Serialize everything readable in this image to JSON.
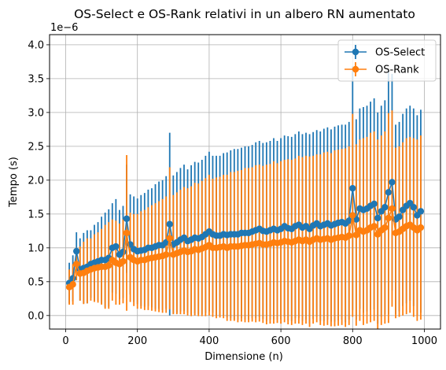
{
  "chart_data": {
    "type": "line",
    "title": "OS-Select e OS-Rank relativi in un albero RN aumentato",
    "xlabel": "Dimensione (n)",
    "ylabel": "Tempo (s)",
    "y_scale_label": "1e−6",
    "xlim": [
      -45,
      1045
    ],
    "ylim": [
      -0.2,
      4.15
    ],
    "x_ticks": [
      0,
      200,
      400,
      600,
      800,
      1000
    ],
    "x_tick_labels": [
      "0",
      "200",
      "400",
      "600",
      "800",
      "1000"
    ],
    "y_ticks": [
      0.0,
      0.5,
      1.0,
      1.5,
      2.0,
      2.5,
      3.0,
      3.5,
      4.0
    ],
    "y_tick_labels": [
      "0.0",
      "0.5",
      "1.0",
      "1.5",
      "2.0",
      "2.5",
      "3.0",
      "3.5",
      "4.0"
    ],
    "grid": true,
    "legend_position": "top-right",
    "x": [
      10,
      20,
      30,
      40,
      50,
      60,
      70,
      80,
      90,
      100,
      110,
      120,
      130,
      140,
      150,
      160,
      170,
      180,
      190,
      200,
      210,
      220,
      230,
      240,
      250,
      260,
      270,
      280,
      290,
      300,
      310,
      320,
      330,
      340,
      350,
      360,
      370,
      380,
      390,
      400,
      410,
      420,
      430,
      440,
      450,
      460,
      470,
      480,
      490,
      500,
      510,
      520,
      530,
      540,
      550,
      560,
      570,
      580,
      590,
      600,
      610,
      620,
      630,
      640,
      650,
      660,
      670,
      680,
      690,
      700,
      710,
      720,
      730,
      740,
      750,
      760,
      770,
      780,
      790,
      800,
      810,
      820,
      830,
      840,
      850,
      860,
      870,
      880,
      890,
      900,
      910,
      920,
      930,
      940,
      950,
      960,
      970,
      980,
      990
    ],
    "series": [
      {
        "name": "OS-Select",
        "color": "#1f77b4",
        "values": [
          0.48,
          0.55,
          0.95,
          0.68,
          0.7,
          0.72,
          0.76,
          0.78,
          0.8,
          0.82,
          0.82,
          0.85,
          1.0,
          1.02,
          0.9,
          0.94,
          1.43,
          1.05,
          0.98,
          0.95,
          0.96,
          0.97,
          1.0,
          1.0,
          1.02,
          1.04,
          1.04,
          1.08,
          1.35,
          1.05,
          1.08,
          1.12,
          1.15,
          1.1,
          1.12,
          1.15,
          1.14,
          1.16,
          1.2,
          1.24,
          1.2,
          1.18,
          1.18,
          1.2,
          1.19,
          1.2,
          1.2,
          1.2,
          1.22,
          1.22,
          1.22,
          1.24,
          1.26,
          1.28,
          1.25,
          1.24,
          1.26,
          1.28,
          1.26,
          1.28,
          1.32,
          1.29,
          1.28,
          1.32,
          1.34,
          1.3,
          1.32,
          1.28,
          1.33,
          1.36,
          1.32,
          1.34,
          1.36,
          1.33,
          1.35,
          1.37,
          1.38,
          1.36,
          1.4,
          1.88,
          1.42,
          1.58,
          1.56,
          1.58,
          1.62,
          1.65,
          1.44,
          1.54,
          1.6,
          1.82,
          1.97,
          1.42,
          1.46,
          1.56,
          1.62,
          1.66,
          1.6,
          1.48,
          1.54
        ],
        "err": [
          0.3,
          0.34,
          0.28,
          0.46,
          0.52,
          0.54,
          0.5,
          0.56,
          0.58,
          0.64,
          0.7,
          0.72,
          0.66,
          0.7,
          0.66,
          0.68,
          0.8,
          0.74,
          0.78,
          0.78,
          0.82,
          0.84,
          0.86,
          0.88,
          0.92,
          0.94,
          0.96,
          0.98,
          1.35,
          1.02,
          1.04,
          1.06,
          1.08,
          1.06,
          1.1,
          1.12,
          1.12,
          1.14,
          1.16,
          1.18,
          1.16,
          1.18,
          1.18,
          1.2,
          1.22,
          1.24,
          1.26,
          1.26,
          1.26,
          1.28,
          1.28,
          1.28,
          1.3,
          1.3,
          1.3,
          1.32,
          1.32,
          1.34,
          1.32,
          1.34,
          1.34,
          1.36,
          1.36,
          1.36,
          1.38,
          1.38,
          1.38,
          1.4,
          1.38,
          1.38,
          1.4,
          1.42,
          1.42,
          1.42,
          1.44,
          1.44,
          1.44,
          1.46,
          1.46,
          1.8,
          1.48,
          1.48,
          1.52,
          1.52,
          1.54,
          1.56,
          1.56,
          1.56,
          1.58,
          1.8,
          1.6,
          1.4,
          1.4,
          1.42,
          1.44,
          1.44,
          1.46,
          1.48,
          1.5
        ]
      },
      {
        "name": "OS-Rank",
        "color": "#ff7f0e",
        "values": [
          0.42,
          0.46,
          0.76,
          0.62,
          0.63,
          0.66,
          0.68,
          0.7,
          0.71,
          0.72,
          0.72,
          0.74,
          0.82,
          0.78,
          0.76,
          0.8,
          1.22,
          0.86,
          0.82,
          0.8,
          0.82,
          0.82,
          0.84,
          0.85,
          0.86,
          0.87,
          0.88,
          0.9,
          1.14,
          0.9,
          0.92,
          0.94,
          0.96,
          0.94,
          0.95,
          0.98,
          0.97,
          0.99,
          1.01,
          1.04,
          1.0,
          1.0,
          1.01,
          1.02,
          1.0,
          1.02,
          1.02,
          1.02,
          1.03,
          1.04,
          1.04,
          1.05,
          1.06,
          1.07,
          1.05,
          1.05,
          1.06,
          1.08,
          1.07,
          1.08,
          1.1,
          1.09,
          1.08,
          1.1,
          1.12,
          1.1,
          1.12,
          1.09,
          1.12,
          1.14,
          1.12,
          1.13,
          1.14,
          1.12,
          1.14,
          1.15,
          1.16,
          1.15,
          1.18,
          1.48,
          1.19,
          1.26,
          1.24,
          1.26,
          1.3,
          1.32,
          1.2,
          1.26,
          1.3,
          1.44,
          1.58,
          1.22,
          1.24,
          1.28,
          1.32,
          1.34,
          1.3,
          1.26,
          1.3
        ],
        "err": [
          0.26,
          0.3,
          0.24,
          0.4,
          0.46,
          0.48,
          0.46,
          0.5,
          0.52,
          0.56,
          0.62,
          0.64,
          0.6,
          0.62,
          0.6,
          0.62,
          1.15,
          0.66,
          0.68,
          0.7,
          0.72,
          0.74,
          0.76,
          0.78,
          0.8,
          0.82,
          0.84,
          0.86,
          1.05,
          0.88,
          0.9,
          0.92,
          0.94,
          0.94,
          0.96,
          0.98,
          0.98,
          1.0,
          1.02,
          1.04,
          1.02,
          1.04,
          1.04,
          1.06,
          1.08,
          1.1,
          1.1,
          1.12,
          1.12,
          1.14,
          1.14,
          1.14,
          1.16,
          1.16,
          1.16,
          1.18,
          1.18,
          1.2,
          1.18,
          1.2,
          1.2,
          1.22,
          1.22,
          1.22,
          1.24,
          1.24,
          1.24,
          1.26,
          1.24,
          1.24,
          1.26,
          1.28,
          1.28,
          1.28,
          1.3,
          1.3,
          1.3,
          1.32,
          1.32,
          1.5,
          1.34,
          1.34,
          1.38,
          1.38,
          1.4,
          1.4,
          1.4,
          1.4,
          1.42,
          1.55,
          1.45,
          1.26,
          1.26,
          1.28,
          1.3,
          1.3,
          1.32,
          1.34,
          1.36
        ]
      }
    ]
  }
}
